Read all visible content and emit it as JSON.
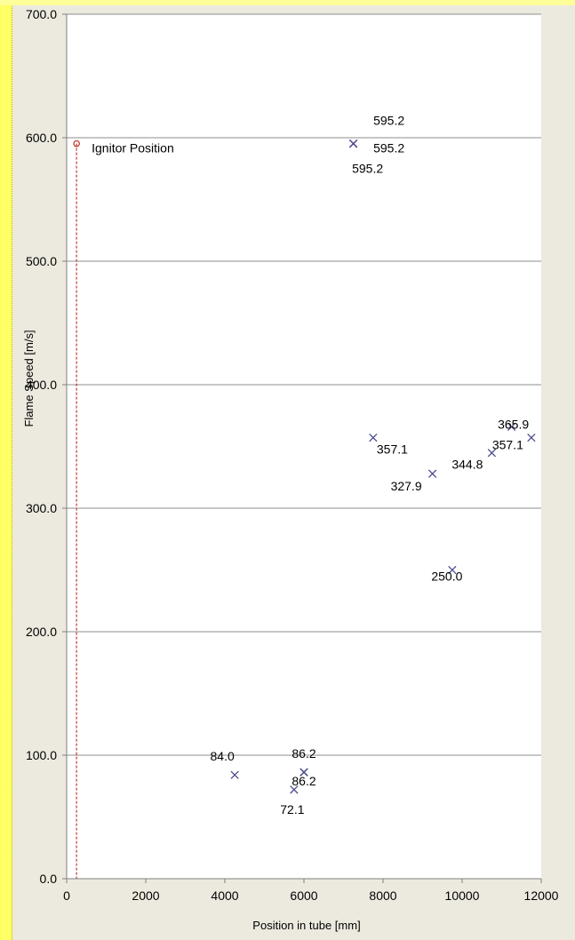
{
  "chart_data": {
    "type": "scatter",
    "title": "",
    "xlabel": "Position in tube [mm]",
    "ylabel": "Flame Speed [m/s]",
    "xlim": [
      0,
      12000
    ],
    "ylim": [
      0,
      700
    ],
    "xticks": [
      0,
      2000,
      4000,
      6000,
      8000,
      10000,
      12000
    ],
    "yticks": [
      "0.0",
      "100.0",
      "200.0",
      "300.0",
      "400.0",
      "500.0",
      "600.0",
      "700.0"
    ],
    "grid": "horizontal",
    "ignitor": {
      "label": "Ignitor Position",
      "x": 250,
      "y": 595.2,
      "color": "#C0392B"
    },
    "marker_color": "#4B4B8F",
    "points": [
      {
        "x": 4250,
        "y": 84.0,
        "label": "84.0"
      },
      {
        "x": 5750,
        "y": 72.1,
        "label": "72.1"
      },
      {
        "x": 6000,
        "y": 86.2,
        "label": "86.2"
      },
      {
        "x": 6000,
        "y": 86.2,
        "label": "86.2"
      },
      {
        "x": 7250,
        "y": 595.2,
        "label": "595.2"
      },
      {
        "x": 7250,
        "y": 595.2,
        "label": "595.2"
      },
      {
        "x": 7250,
        "y": 595.2,
        "label": "595.2"
      },
      {
        "x": 7750,
        "y": 357.1,
        "label": "357.1"
      },
      {
        "x": 9250,
        "y": 327.9,
        "label": "327.9"
      },
      {
        "x": 9750,
        "y": 250.0,
        "label": "250.0"
      },
      {
        "x": 10750,
        "y": 344.8,
        "label": "344.8"
      },
      {
        "x": 11250,
        "y": 365.9,
        "label": "365.9"
      },
      {
        "x": 11750,
        "y": 357.1,
        "label": "357.1"
      }
    ]
  }
}
